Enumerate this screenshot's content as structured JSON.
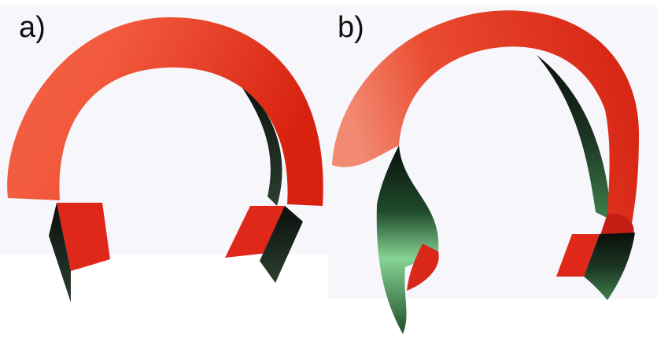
{
  "panels": [
    {
      "label": "a)"
    },
    {
      "label": "b)"
    }
  ],
  "colors": {
    "band_red": "#e2291a",
    "band_red_light": "#f07a5f",
    "back_dark": "#1a2a1f",
    "back_green": "#3f8a4c",
    "back_green_light": "#8fd79a",
    "background": "#f7f6fa"
  }
}
